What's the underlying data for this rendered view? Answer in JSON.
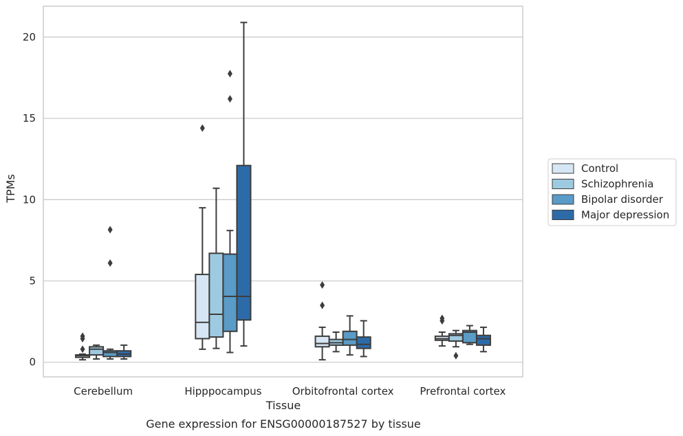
{
  "chart_data": {
    "type": "boxplot",
    "title": "Gene expression for ENSG00000187527 by tissue",
    "xlabel": "Tissue",
    "ylabel": "TPMs",
    "ylim": [
      -0.9,
      21.9
    ],
    "yticks": [
      0,
      5,
      10,
      15,
      20
    ],
    "grid": "horizontal",
    "legend_position": "right",
    "categories": [
      "Cerebellum",
      "Hipppocampus",
      "Orbitofrontal cortex",
      "Prefrontal cortex"
    ],
    "series": [
      {
        "name": "Control",
        "color": "#d6e6f4",
        "boxes": [
          {
            "whislo": 0.15,
            "q1": 0.3,
            "med": 0.4,
            "q3": 0.45,
            "whishi": 0.5,
            "fliers": [
              0.8,
              1.45,
              1.6
            ]
          },
          {
            "whislo": 0.8,
            "q1": 1.45,
            "med": 2.45,
            "q3": 5.4,
            "whishi": 9.5,
            "fliers": [
              14.4
            ]
          },
          {
            "whislo": 0.15,
            "q1": 0.95,
            "med": 1.15,
            "q3": 1.6,
            "whishi": 2.15,
            "fliers": [
              3.5,
              4.75
            ]
          },
          {
            "whislo": 1.0,
            "q1": 1.35,
            "med": 1.45,
            "q3": 1.6,
            "whishi": 1.85,
            "fliers": [
              2.55,
              2.7
            ]
          }
        ]
      },
      {
        "name": "Schizophrenia",
        "color": "#9ecae1",
        "boxes": [
          {
            "whislo": 0.2,
            "q1": 0.45,
            "med": 0.8,
            "q3": 0.95,
            "whishi": 1.05,
            "fliers": []
          },
          {
            "whislo": 0.85,
            "q1": 1.55,
            "med": 2.95,
            "q3": 6.7,
            "whishi": 10.7,
            "fliers": []
          },
          {
            "whislo": 0.65,
            "q1": 1.05,
            "med": 1.2,
            "q3": 1.4,
            "whishi": 1.85,
            "fliers": []
          },
          {
            "whislo": 0.95,
            "q1": 1.3,
            "med": 1.65,
            "q3": 1.75,
            "whishi": 1.95,
            "fliers": [
              0.4
            ]
          }
        ]
      },
      {
        "name": "Bipolar disorder",
        "color": "#5a9bc7",
        "boxes": [
          {
            "whislo": 0.2,
            "q1": 0.35,
            "med": 0.6,
            "q3": 0.7,
            "whishi": 0.8,
            "fliers": [
              6.1,
              8.15
            ]
          },
          {
            "whislo": 0.6,
            "q1": 1.9,
            "med": 4.05,
            "q3": 6.65,
            "whishi": 8.1,
            "fliers": [
              16.2,
              17.75
            ]
          },
          {
            "whislo": 0.45,
            "q1": 1.05,
            "med": 1.4,
            "q3": 1.9,
            "whishi": 2.85,
            "fliers": []
          },
          {
            "whislo": 1.1,
            "q1": 1.2,
            "med": 1.85,
            "q3": 1.95,
            "whishi": 2.25,
            "fliers": []
          }
        ]
      },
      {
        "name": "Major depression",
        "color": "#2d6ba8",
        "boxes": [
          {
            "whislo": 0.2,
            "q1": 0.35,
            "med": 0.5,
            "q3": 0.7,
            "whishi": 1.05,
            "fliers": []
          },
          {
            "whislo": 1.0,
            "q1": 2.6,
            "med": 4.05,
            "q3": 12.1,
            "whishi": 20.9,
            "fliers": []
          },
          {
            "whislo": 0.35,
            "q1": 0.85,
            "med": 1.1,
            "q3": 1.55,
            "whishi": 2.55,
            "fliers": []
          },
          {
            "whislo": 0.65,
            "q1": 1.05,
            "med": 1.45,
            "q3": 1.65,
            "whishi": 2.15,
            "fliers": []
          }
        ]
      }
    ]
  },
  "colors": {
    "grid": "#cccccc",
    "frame": "#cccccc",
    "box_edge": "#3d3d3d",
    "text": "#262626"
  }
}
